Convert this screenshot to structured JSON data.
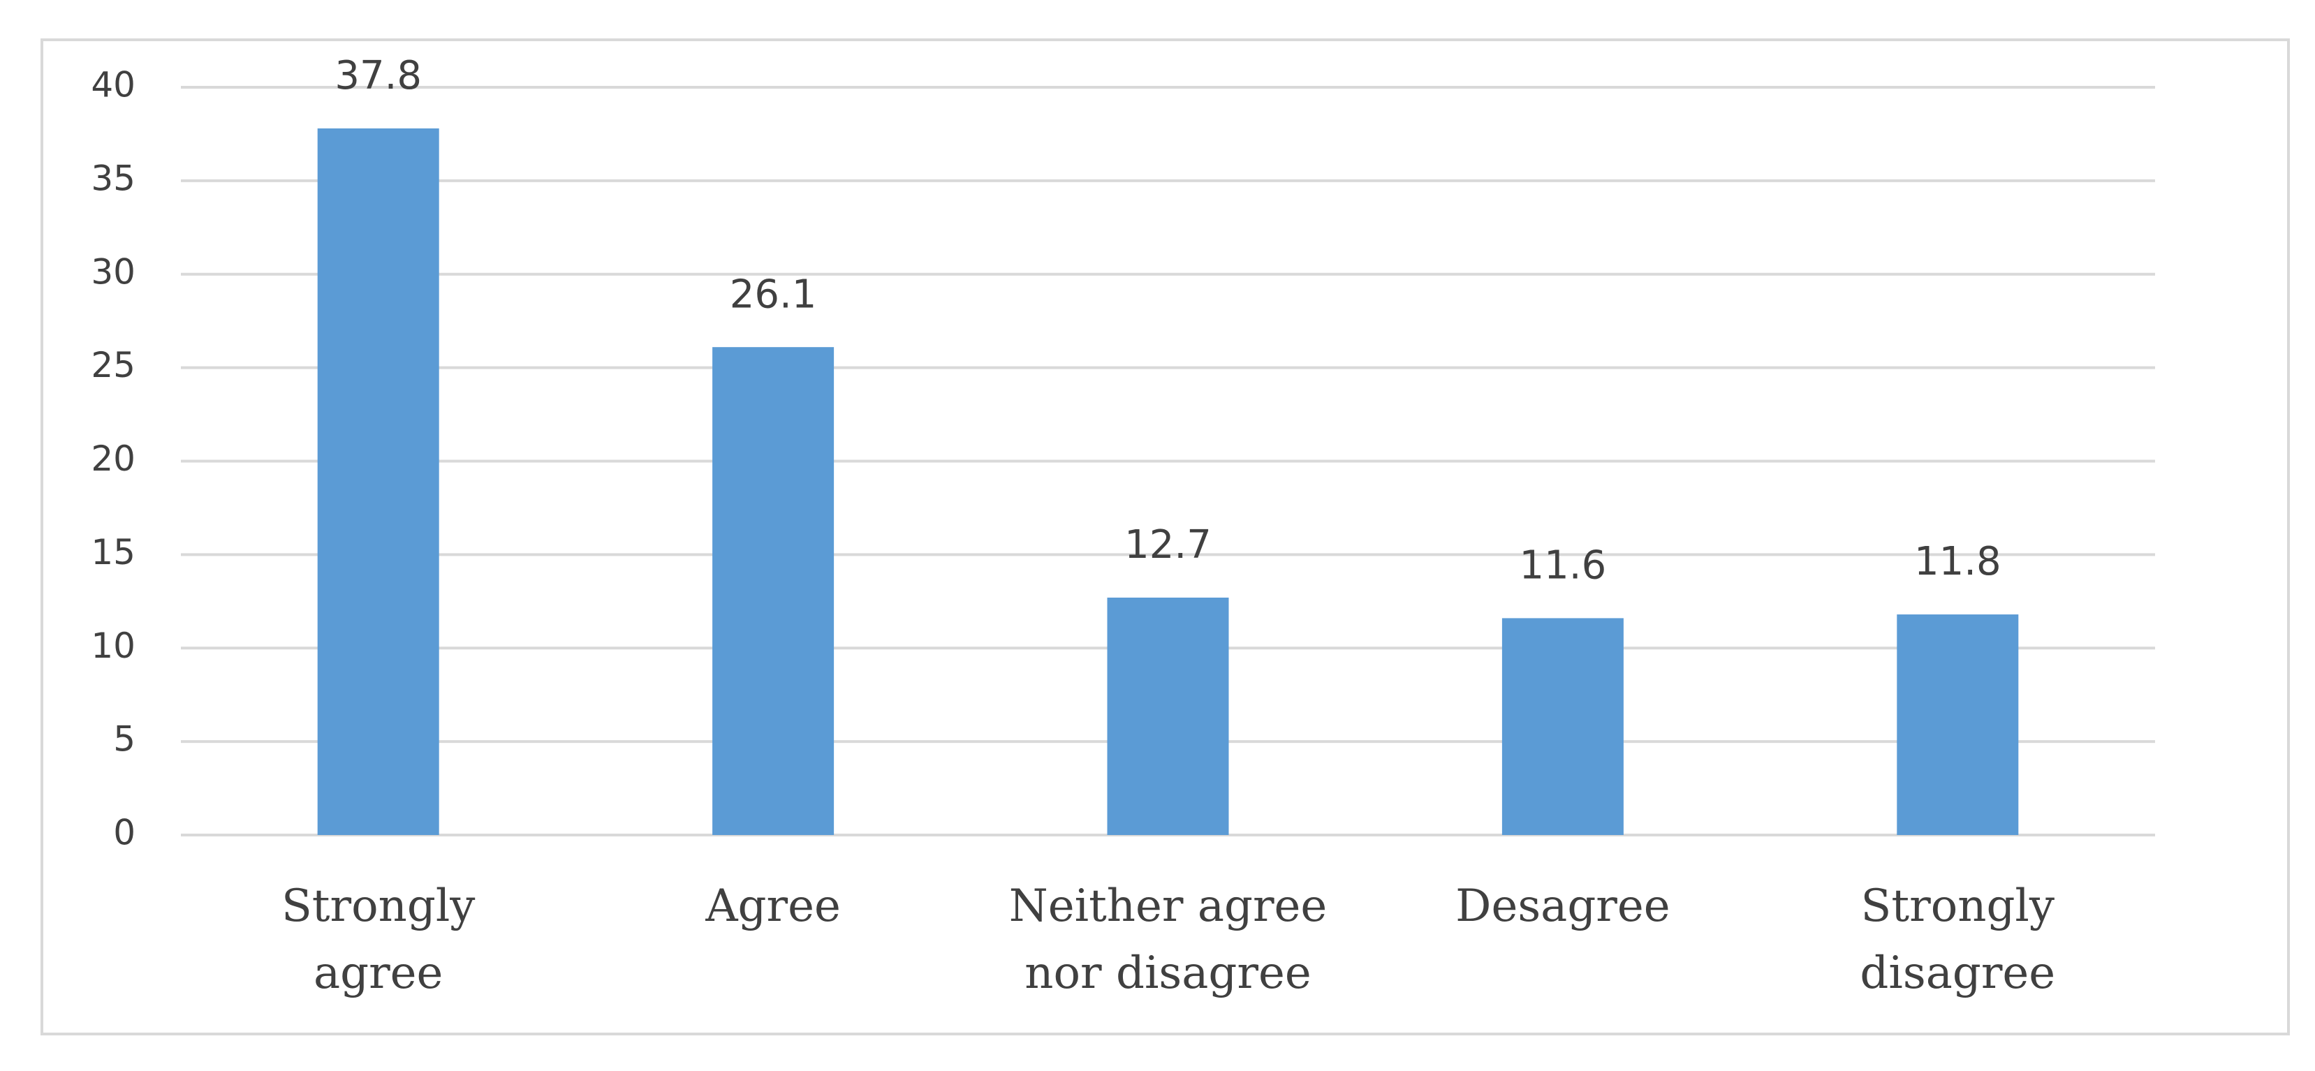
{
  "chart_data": {
    "type": "bar",
    "categories": [
      "Strongly agree",
      "Agree",
      "Neither agree nor disagree",
      "Desagree",
      "Strongly disagree"
    ],
    "values": [
      37.8,
      26.1,
      12.7,
      11.6,
      11.8
    ],
    "color": "#5b9bd5",
    "ylim": [
      0,
      40
    ],
    "yticks": [
      0,
      5,
      10,
      15,
      20,
      25,
      30,
      35,
      40
    ],
    "grid": true
  }
}
